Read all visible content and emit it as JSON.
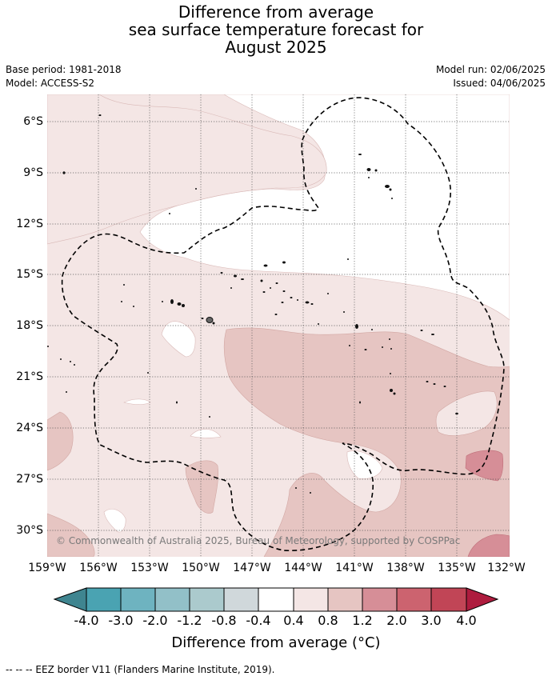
{
  "title_lines": [
    "Difference from average",
    "sea surface temperature forecast for",
    "August 2025"
  ],
  "meta": {
    "base_period": "Base period: 1981-2018",
    "model": "Model: ACCESS-S2",
    "model_run": "Model run: 02/06/2025",
    "issued": "Issued: 04/06/2025"
  },
  "map": {
    "lat_labels": [
      "6°S",
      "9°S",
      "12°S",
      "15°S",
      "18°S",
      "21°S",
      "24°S",
      "27°S",
      "30°S"
    ],
    "lon_labels": [
      "159°W",
      "156°W",
      "153°W",
      "150°W",
      "147°W",
      "144°W",
      "141°W",
      "138°W",
      "135°W",
      "132°W"
    ],
    "copyright": "© Commonwealth of Australia 2025, Bureau of Meteorology, supported by COSPPac",
    "grid": true
  },
  "colorbar": {
    "ticks": [
      "-4.0",
      "-3.0",
      "-2.0",
      "-1.2",
      "-0.8",
      "-0.4",
      "0.4",
      "0.8",
      "1.2",
      "2.0",
      "3.0",
      "4.0"
    ],
    "colors": [
      "#3f8590",
      "#4aa3b2",
      "#6eb3c0",
      "#92c0c8",
      "#abcacd",
      "#d0d8db",
      "#ffffff",
      "#f4e6e5",
      "#e6c5c2",
      "#d68e97",
      "#cc636f",
      "#c14556",
      "#ae1c3e"
    ],
    "title": "Difference from average (°C)"
  },
  "footnote": "-- -- -- EEZ border V11 (Flanders Marine Institute, 2019)."
}
